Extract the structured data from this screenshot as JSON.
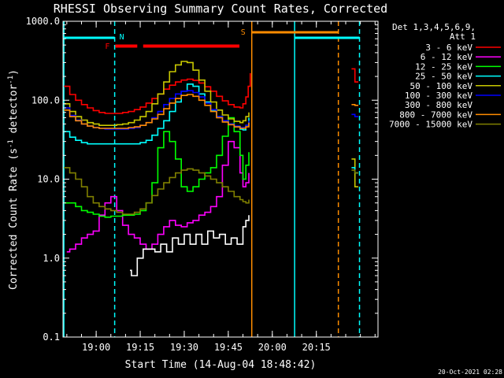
{
  "chart_data": {
    "type": "line",
    "title": "RHESSI Observing Summary Count Rates, Corrected",
    "xlabel": "Start Time (14-Aug-04 18:48:42)",
    "ylabel_main": "Corrected Count Rate (s",
    "ylabel_sup1": "-1",
    "ylabel_mid": " detector",
    "ylabel_sup2": "-1",
    "ylabel_end": ")",
    "y_scale": "log",
    "ylim": [
      0.1,
      1000
    ],
    "y_ticks": [
      {
        "value": 0.1,
        "label": "0.1"
      },
      {
        "value": 1,
        "label": "1.0"
      },
      {
        "value": 10,
        "label": "10.0"
      },
      {
        "value": 100,
        "label": "100.0"
      },
      {
        "value": 1000,
        "label": "1000.0"
      }
    ],
    "x_unit": "minutes of day",
    "xlim": [
      1128.7,
      1236
    ],
    "x_ticks": [
      {
        "value": 1140,
        "label": "19:00"
      },
      {
        "value": 1155,
        "label": "19:15"
      },
      {
        "value": 1170,
        "label": "19:30"
      },
      {
        "value": 1185,
        "label": "19:45"
      },
      {
        "value": 1200,
        "label": "20:00"
      },
      {
        "value": 1215,
        "label": "20:15"
      }
    ],
    "legend_title_1": "Det 1,3,4,5,6,9,",
    "legend_title_2": "Att 1",
    "legend_position": "right",
    "series": [
      {
        "name": "3 - 6 keV",
        "color": "#ff0000",
        "x": [
          1129,
          1131,
          1133,
          1135,
          1137,
          1139,
          1141,
          1143,
          1145,
          1147,
          1149,
          1151,
          1153,
          1155,
          1157,
          1159,
          1161,
          1163,
          1165,
          1167,
          1169,
          1171,
          1173,
          1175,
          1177,
          1179,
          1181,
          1183,
          1185,
          1187,
          1189,
          1190,
          1191,
          1191.8,
          1192.5
        ],
        "y": [
          150,
          118,
          100,
          88,
          80,
          74,
          70,
          68,
          68,
          68,
          70,
          72,
          76,
          82,
          92,
          105,
          120,
          138,
          155,
          170,
          180,
          185,
          178,
          165,
          148,
          130,
          112,
          98,
          88,
          82,
          80,
          90,
          110,
          150,
          220
        ]
      },
      {
        "name": "6 - 12 keV",
        "color": "#ff00ff",
        "x": [
          1130,
          1131,
          1133,
          1135,
          1137,
          1139,
          1141,
          1143,
          1145,
          1147,
          1149,
          1151,
          1153,
          1155,
          1157,
          1159,
          1161,
          1163,
          1165,
          1167,
          1169,
          1171,
          1173,
          1175,
          1177,
          1179,
          1181,
          1183,
          1185,
          1187,
          1189,
          1190,
          1191,
          1192
        ],
        "y": [
          1.2,
          1.3,
          1.5,
          1.8,
          2.0,
          2.2,
          3.5,
          5.0,
          6.0,
          4.0,
          2.6,
          2.0,
          1.8,
          1.5,
          1.3,
          1.5,
          2.0,
          2.5,
          3.0,
          2.6,
          2.5,
          2.8,
          3.0,
          3.5,
          3.8,
          4.5,
          6.0,
          15,
          30,
          25,
          12,
          8,
          9,
          12
        ]
      },
      {
        "name": "12 - 25 keV",
        "color": "#00ff00",
        "x": [
          1129,
          1131,
          1133,
          1135,
          1137,
          1139,
          1141,
          1143,
          1145,
          1147,
          1149,
          1151,
          1153,
          1155,
          1157,
          1159,
          1161,
          1163,
          1165,
          1167,
          1169,
          1171,
          1173,
          1175,
          1177,
          1179,
          1181,
          1183,
          1185,
          1187,
          1189,
          1190,
          1191,
          1192
        ],
        "y": [
          5.0,
          5.0,
          4.5,
          4.0,
          3.8,
          3.6,
          3.4,
          3.3,
          3.4,
          3.4,
          3.5,
          3.5,
          3.6,
          4.0,
          5.0,
          9,
          25,
          40,
          30,
          18,
          8,
          7,
          8,
          10,
          12,
          14,
          20,
          35,
          60,
          40,
          20,
          10,
          15,
          22
        ]
      },
      {
        "name": "25 - 50 keV",
        "color": "#00ffff",
        "x": [
          1129,
          1131,
          1133,
          1135,
          1137,
          1139,
          1141,
          1143,
          1145,
          1147,
          1149,
          1151,
          1153,
          1155,
          1157,
          1159,
          1161,
          1163,
          1165,
          1167,
          1169,
          1171,
          1173,
          1175,
          1177,
          1179,
          1181,
          1183,
          1185,
          1187,
          1189,
          1190,
          1191,
          1192
        ],
        "y": [
          40,
          34,
          31,
          29,
          28,
          28,
          28,
          28,
          28,
          28,
          28,
          28,
          28,
          29,
          31,
          36,
          44,
          55,
          72,
          95,
          130,
          160,
          150,
          120,
          95,
          75,
          62,
          55,
          50,
          46,
          43,
          42,
          48,
          60
        ]
      },
      {
        "name": "50 - 100 keV",
        "color": "#c8c800",
        "x": [
          1129,
          1131,
          1133,
          1135,
          1137,
          1139,
          1141,
          1143,
          1145,
          1147,
          1149,
          1151,
          1153,
          1155,
          1157,
          1159,
          1161,
          1163,
          1165,
          1167,
          1169,
          1171,
          1173,
          1175,
          1177,
          1179,
          1181,
          1183,
          1185,
          1187,
          1189,
          1190,
          1191,
          1192
        ],
        "y": [
          90,
          72,
          62,
          56,
          52,
          50,
          48,
          48,
          48,
          49,
          50,
          52,
          56,
          62,
          72,
          90,
          120,
          170,
          230,
          280,
          310,
          300,
          240,
          180,
          130,
          95,
          75,
          65,
          58,
          54,
          52,
          55,
          62,
          70
        ]
      },
      {
        "name": "100 - 300 keV",
        "color": "#0000ff",
        "x": [
          1129,
          1131,
          1133,
          1135,
          1137,
          1139,
          1141,
          1143,
          1145,
          1147,
          1149,
          1151,
          1153,
          1155,
          1157,
          1159,
          1161,
          1163,
          1165,
          1167,
          1169,
          1171,
          1173,
          1175,
          1177,
          1179,
          1181,
          1183,
          1185,
          1187,
          1189,
          1190,
          1191,
          1192
        ],
        "y": [
          80,
          64,
          56,
          50,
          47,
          45,
          44,
          43,
          43,
          43,
          43,
          44,
          45,
          48,
          52,
          60,
          72,
          88,
          105,
          120,
          130,
          132,
          125,
          110,
          92,
          76,
          62,
          55,
          50,
          47,
          45,
          45,
          48,
          55
        ]
      },
      {
        "name": "300 - 800 keV",
        "color": "#000000",
        "x": [
          1151.5,
          1152,
          1154,
          1156,
          1158,
          1160,
          1162,
          1164,
          1166,
          1168,
          1170,
          1172,
          1174,
          1176,
          1178,
          1180,
          1182,
          1184,
          1186,
          1188,
          1190,
          1191,
          1192
        ],
        "y": [
          0.7,
          0.6,
          1.0,
          1.3,
          1.3,
          1.2,
          1.5,
          1.2,
          1.8,
          1.5,
          2.0,
          1.5,
          2.0,
          1.5,
          2.2,
          1.8,
          2.0,
          1.5,
          1.8,
          1.5,
          2.5,
          3.0,
          3.5
        ]
      },
      {
        "name": "800 - 7000 keV",
        "color": "#ff8c00",
        "x": [
          1129,
          1131,
          1133,
          1135,
          1137,
          1139,
          1141,
          1143,
          1145,
          1147,
          1149,
          1151,
          1153,
          1155,
          1157,
          1159,
          1161,
          1163,
          1165,
          1167,
          1169,
          1171,
          1173,
          1175,
          1177,
          1179,
          1181,
          1183,
          1185,
          1187,
          1189,
          1190,
          1191,
          1192
        ],
        "y": [
          75,
          62,
          55,
          50,
          47,
          45,
          44,
          44,
          44,
          44,
          44,
          45,
          46,
          48,
          52,
          58,
          66,
          78,
          92,
          105,
          115,
          118,
          112,
          100,
          86,
          72,
          60,
          53,
          49,
          46,
          44,
          44,
          46,
          52
        ]
      },
      {
        "name": "7000 - 15000 keV",
        "color": "#808000",
        "x": [
          1129,
          1131,
          1133,
          1135,
          1137,
          1139,
          1141,
          1143,
          1145,
          1147,
          1149,
          1151,
          1153,
          1155,
          1157,
          1159,
          1161,
          1163,
          1165,
          1167,
          1169,
          1171,
          1173,
          1175,
          1177,
          1179,
          1181,
          1183,
          1185,
          1187,
          1189,
          1190,
          1191,
          1192
        ],
        "y": [
          14,
          12,
          10,
          8,
          6,
          5,
          4.5,
          4.2,
          4.0,
          3.8,
          3.6,
          3.6,
          3.8,
          4.2,
          5.0,
          6.2,
          7.5,
          9,
          10.5,
          12,
          13,
          13.5,
          13,
          12,
          11,
          10,
          9,
          8,
          7,
          6,
          5.5,
          5.2,
          5.0,
          5.5
        ]
      }
    ],
    "late_segment": {
      "x_start": 1227,
      "x_end": 1229.3,
      "values": [
        {
          "series": "3 - 6 keV",
          "y": [
            250,
            170
          ]
        },
        {
          "series": "800 - 7000 keV",
          "y": [
            88,
            86
          ]
        },
        {
          "series": "100 - 300 keV",
          "y": [
            66,
            62
          ]
        },
        {
          "series": "50 - 100 keV",
          "y": [
            18,
            8
          ]
        },
        {
          "series": "25 - 50 keV",
          "y": [
            14,
            12
          ]
        },
        {
          "series": "7000 - 15000 keV",
          "y": [
            13,
            12
          ]
        }
      ]
    },
    "annotations": {
      "night_bars": [
        {
          "from": 1129,
          "to": 1146.3
        },
        {
          "from": 1207.6,
          "to": 1229.7
        }
      ],
      "night_label": "N",
      "night_lines": [
        {
          "x": 1129,
          "style": "solid"
        },
        {
          "x": 1146.3,
          "style": "dashed"
        },
        {
          "x": 1207.6,
          "style": "solid"
        },
        {
          "x": 1229.7,
          "style": "dashed"
        }
      ],
      "flare_bars": [
        {
          "from": 1146.5,
          "to": 1154
        },
        {
          "from": 1156,
          "to": 1188.8
        }
      ],
      "flare_label": "F",
      "saa_bar": {
        "from": 1193,
        "to": 1222.5
      },
      "saa_label": "S",
      "saa_lines": [
        {
          "x": 1193,
          "style": "solid"
        },
        {
          "x": 1222.5,
          "style": "dashed"
        }
      ]
    },
    "grid": false
  },
  "footer": {
    "timestamp": "20-Oct-2021 02:28"
  }
}
